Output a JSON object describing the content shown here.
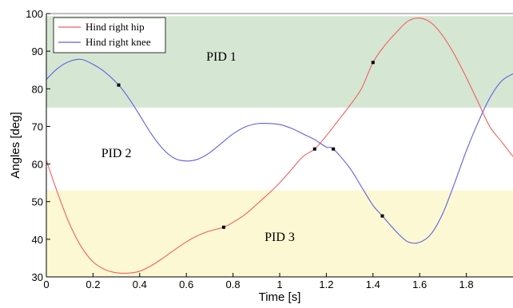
{
  "chart_data": {
    "type": "line",
    "xlabel": "Time [s]",
    "ylabel": "Angles [deg]",
    "xlim": [
      0,
      2.0
    ],
    "ylim": [
      30,
      100
    ],
    "xticks": [
      "0",
      "0.2",
      "0.4",
      "0.6",
      "0.8",
      "1",
      "1.2",
      "1.4",
      "1.6",
      "1.8"
    ],
    "xtick_values": [
      0,
      0.2,
      0.4,
      0.6,
      0.8,
      1.0,
      1.2,
      1.4,
      1.6,
      1.8
    ],
    "yticks": [
      "30",
      "40",
      "50",
      "60",
      "70",
      "80",
      "90",
      "100"
    ],
    "ytick_values": [
      30,
      40,
      50,
      60,
      70,
      80,
      90,
      100
    ],
    "grid": false,
    "legend_position": "top-left",
    "bands": [
      {
        "label": "PID 1",
        "y_from": 75,
        "y_to": 99.3,
        "color": "#d5e6d3",
        "label_x": 0.75,
        "label_y": 87.5
      },
      {
        "label": "PID 2",
        "y_from": 53,
        "y_to": 75,
        "color": "#ffffff",
        "label_x": 0.3,
        "label_y": 61.8
      },
      {
        "label": "PID 3",
        "y_from": 30,
        "y_to": 53,
        "color": "#fbf8d3",
        "label_x": 1.0,
        "label_y": 39.5
      }
    ],
    "series": [
      {
        "name": "Hind right hip",
        "color": "#f26060",
        "x": [
          0,
          0.05,
          0.1,
          0.15,
          0.2,
          0.25,
          0.3,
          0.35,
          0.4,
          0.45,
          0.5,
          0.55,
          0.6,
          0.65,
          0.7,
          0.76,
          0.8,
          0.85,
          0.9,
          0.95,
          1.0,
          1.05,
          1.1,
          1.15,
          1.2,
          1.25,
          1.3,
          1.35,
          1.4,
          1.45,
          1.5,
          1.55,
          1.6,
          1.65,
          1.7,
          1.75,
          1.8,
          1.85,
          1.9,
          1.95,
          2.0
        ],
        "y": [
          61.0,
          52.0,
          44.0,
          38.0,
          34.0,
          32.0,
          31.1,
          31.0,
          31.5,
          33.0,
          35.0,
          37.2,
          39.3,
          41.0,
          42.2,
          43.2,
          44.5,
          46.5,
          49.2,
          52.0,
          55.0,
          58.5,
          62.0,
          64.0,
          67.5,
          71.5,
          75.5,
          80.0,
          87.0,
          91.5,
          95.0,
          98.0,
          98.8,
          97.5,
          94.0,
          89.0,
          83.0,
          76.5,
          70.0,
          66.0,
          62.0
        ],
        "markers": [
          [
            0.76,
            43.2
          ],
          [
            1.15,
            64.0
          ],
          [
            1.4,
            87.0
          ]
        ]
      },
      {
        "name": "Hind right knee",
        "color": "#6060e0",
        "x": [
          0,
          0.05,
          0.1,
          0.15,
          0.2,
          0.25,
          0.31,
          0.35,
          0.4,
          0.45,
          0.5,
          0.55,
          0.6,
          0.65,
          0.7,
          0.75,
          0.8,
          0.85,
          0.9,
          0.95,
          1.0,
          1.05,
          1.1,
          1.15,
          1.2,
          1.23,
          1.3,
          1.35,
          1.4,
          1.44,
          1.5,
          1.55,
          1.6,
          1.65,
          1.7,
          1.75,
          1.8,
          1.85,
          1.9,
          1.95,
          2.0
        ],
        "y": [
          82.5,
          85.5,
          87.3,
          87.8,
          86.5,
          84.5,
          81.0,
          77.8,
          73.0,
          68.0,
          64.0,
          61.5,
          60.8,
          61.3,
          63.0,
          65.5,
          68.0,
          69.8,
          70.7,
          70.8,
          70.5,
          69.5,
          68.0,
          66.5,
          64.5,
          64.0,
          59.0,
          54.0,
          49.0,
          46.2,
          42.0,
          39.3,
          39.2,
          41.5,
          47.0,
          55.0,
          63.5,
          71.0,
          77.5,
          82.0,
          84.0
        ],
        "markers": [
          [
            0.31,
            81.0
          ],
          [
            1.23,
            64.0
          ],
          [
            1.44,
            46.2
          ]
        ]
      }
    ]
  }
}
